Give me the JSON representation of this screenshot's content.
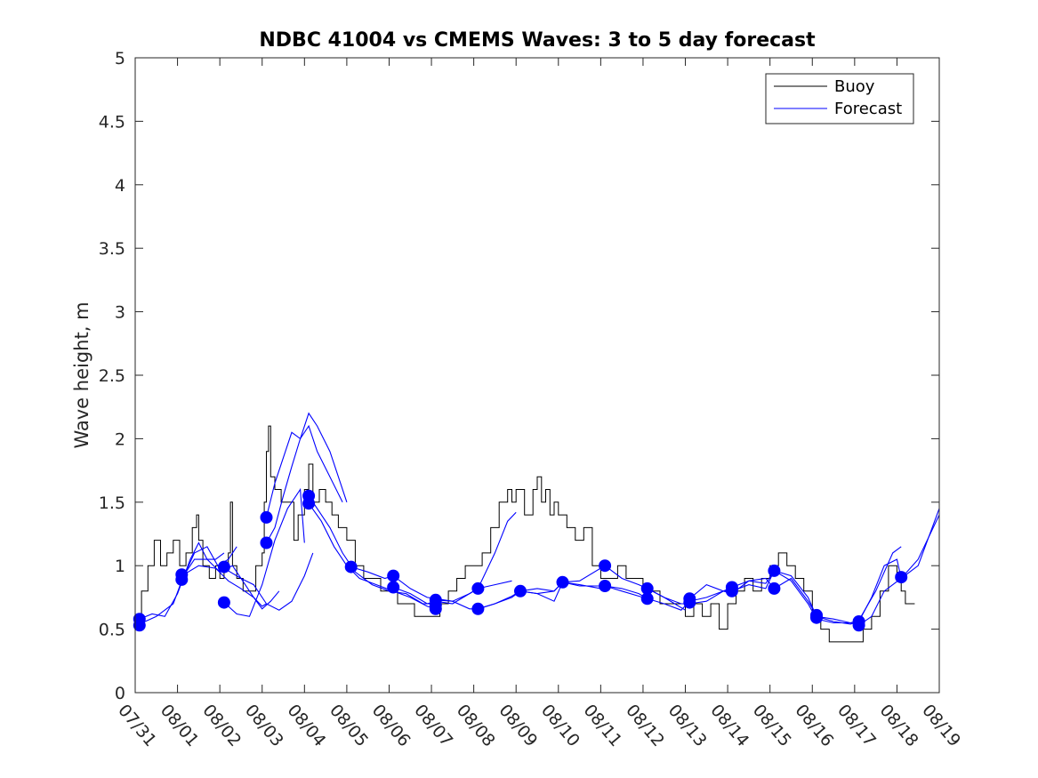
{
  "chart_data": {
    "type": "line",
    "title": "NDBC 41004 vs CMEMS Waves: 3 to 5 day forecast",
    "xlabel": "",
    "ylabel": "Wave height, m",
    "xlim": [
      0,
      19
    ],
    "ylim": [
      0,
      5
    ],
    "yticks": [
      "0",
      "0.5",
      "1",
      "1.5",
      "2",
      "2.5",
      "3",
      "3.5",
      "4",
      "4.5",
      "5"
    ],
    "xticks": [
      "07/31",
      "08/01",
      "08/02",
      "08/03",
      "08/04",
      "08/05",
      "08/06",
      "08/07",
      "08/08",
      "08/09",
      "08/10",
      "08/11",
      "08/12",
      "08/13",
      "08/14",
      "08/15",
      "08/16",
      "08/17",
      "08/18",
      "08/19"
    ],
    "legend": {
      "position": "top-right",
      "entries": [
        "Buoy",
        "Forecast"
      ]
    },
    "colors": {
      "buoy": "#000000",
      "forecast": "#0000ff"
    },
    "buoy": {
      "name": "Buoy",
      "x": [
        0.0,
        0.15,
        0.3,
        0.45,
        0.6,
        0.75,
        0.9,
        1.05,
        1.2,
        1.35,
        1.45,
        1.5,
        1.6,
        1.75,
        1.9,
        2.0,
        2.1,
        2.2,
        2.25,
        2.3,
        2.4,
        2.55,
        2.7,
        2.85,
        3.0,
        3.05,
        3.1,
        3.15,
        3.2,
        3.3,
        3.45,
        3.6,
        3.75,
        3.85,
        4.0,
        4.1,
        4.2,
        4.35,
        4.5,
        4.65,
        4.8,
        5.0,
        5.2,
        5.4,
        5.6,
        5.8,
        6.0,
        6.2,
        6.4,
        6.6,
        6.8,
        7.0,
        7.2,
        7.4,
        7.6,
        7.8,
        8.0,
        8.2,
        8.4,
        8.6,
        8.8,
        8.9,
        9.0,
        9.2,
        9.4,
        9.5,
        9.6,
        9.7,
        9.8,
        9.9,
        10.0,
        10.2,
        10.4,
        10.6,
        10.8,
        11.0,
        11.2,
        11.4,
        11.6,
        11.8,
        12.0,
        12.2,
        12.4,
        12.6,
        12.8,
        13.0,
        13.2,
        13.4,
        13.6,
        13.8,
        14.0,
        14.2,
        14.4,
        14.6,
        14.8,
        15.0,
        15.2,
        15.4,
        15.6,
        15.8,
        16.0,
        16.2,
        16.4,
        16.6,
        16.8,
        17.0,
        17.2,
        17.4,
        17.6,
        17.8,
        18.0,
        18.1,
        18.2,
        18.3
      ],
      "y": [
        0.5,
        0.8,
        1.0,
        1.2,
        1.0,
        1.1,
        1.2,
        1.0,
        1.1,
        1.3,
        1.4,
        1.2,
        1.0,
        0.9,
        1.0,
        0.9,
        1.0,
        1.1,
        1.5,
        1.0,
        0.9,
        0.8,
        0.8,
        1.0,
        1.1,
        1.5,
        1.9,
        2.1,
        1.7,
        1.6,
        1.5,
        1.5,
        1.2,
        1.4,
        1.6,
        1.8,
        1.5,
        1.6,
        1.5,
        1.4,
        1.3,
        1.2,
        1.0,
        0.9,
        0.9,
        0.8,
        0.8,
        0.7,
        0.7,
        0.6,
        0.6,
        0.6,
        0.7,
        0.8,
        0.9,
        1.0,
        1.0,
        1.1,
        1.3,
        1.5,
        1.6,
        1.5,
        1.6,
        1.4,
        1.6,
        1.7,
        1.5,
        1.6,
        1.4,
        1.5,
        1.4,
        1.3,
        1.2,
        1.3,
        1.0,
        0.9,
        0.9,
        1.0,
        0.9,
        0.9,
        0.8,
        0.8,
        0.7,
        0.7,
        0.7,
        0.6,
        0.7,
        0.6,
        0.7,
        0.5,
        0.7,
        0.8,
        0.9,
        0.8,
        0.9,
        1.0,
        1.1,
        1.0,
        0.9,
        0.8,
        0.6,
        0.5,
        0.4,
        0.4,
        0.4,
        0.4,
        0.5,
        0.6,
        0.8,
        1.0,
        0.9,
        0.8,
        0.7,
        0.7
      ]
    },
    "forecasts": [
      {
        "name": "Forecast",
        "x": [
          0.1,
          0.4,
          0.7,
          1.0,
          1.3,
          1.5,
          1.7,
          1.9,
          2.1
        ],
        "y": [
          0.58,
          0.62,
          0.6,
          0.78,
          1.05,
          1.18,
          1.05,
          1.05,
          1.1
        ]
      },
      {
        "name": "Forecast",
        "x": [
          0.1,
          0.5,
          0.9,
          1.1,
          1.4,
          1.7,
          1.95,
          2.2,
          2.4
        ],
        "y": [
          0.54,
          0.6,
          0.7,
          0.88,
          1.1,
          1.15,
          1.0,
          1.05,
          1.15
        ]
      },
      {
        "name": "Forecast",
        "x": [
          1.1,
          1.4,
          1.7,
          2.0,
          2.3,
          2.6,
          2.8,
          3.0,
          3.1
        ],
        "y": [
          0.9,
          1.05,
          1.05,
          0.95,
          1.0,
          0.85,
          0.75,
          0.68,
          0.7
        ]
      },
      {
        "name": "Forecast",
        "x": [
          1.1,
          1.5,
          1.9,
          2.2,
          2.5,
          2.8,
          3.0,
          3.2,
          3.4
        ],
        "y": [
          0.92,
          1.0,
          0.98,
          0.88,
          0.82,
          0.75,
          0.66,
          0.72,
          0.8
        ]
      },
      {
        "name": "Forecast",
        "x": [
          2.1,
          2.5,
          2.8,
          3.1,
          3.4,
          3.7,
          4.0,
          4.2
        ],
        "y": [
          0.98,
          0.9,
          0.85,
          0.7,
          0.65,
          0.72,
          0.92,
          1.1
        ]
      },
      {
        "name": "Forecast",
        "x": [
          2.1,
          2.4,
          2.7,
          3.0,
          3.3,
          3.6,
          3.9,
          4.0
        ],
        "y": [
          0.71,
          0.62,
          0.6,
          0.85,
          1.2,
          1.45,
          1.6,
          1.18
        ]
      },
      {
        "name": "Forecast",
        "x": [
          3.1,
          3.3,
          3.5,
          3.7,
          3.9,
          4.1,
          4.3,
          4.6,
          4.9
        ],
        "y": [
          1.38,
          1.65,
          1.85,
          2.05,
          2.0,
          2.1,
          1.9,
          1.7,
          1.5
        ]
      },
      {
        "name": "Forecast",
        "x": [
          3.1,
          3.3,
          3.5,
          3.7,
          3.9,
          4.1,
          4.3,
          4.6,
          4.8,
          5.0
        ],
        "y": [
          1.18,
          1.3,
          1.55,
          1.78,
          2.0,
          2.2,
          2.1,
          1.9,
          1.7,
          1.5
        ]
      },
      {
        "name": "Forecast",
        "x": [
          4.1,
          4.3,
          4.6,
          4.9,
          5.2,
          5.6,
          6.0,
          6.4,
          6.8,
          7.1
        ],
        "y": [
          1.55,
          1.45,
          1.3,
          1.1,
          0.95,
          0.85,
          0.8,
          0.78,
          0.7,
          0.7
        ]
      },
      {
        "name": "Forecast",
        "x": [
          4.1,
          4.4,
          4.7,
          5.0,
          5.3,
          5.7,
          6.1,
          6.5,
          6.9,
          7.1
        ],
        "y": [
          1.49,
          1.35,
          1.15,
          1.0,
          0.9,
          0.85,
          0.8,
          0.75,
          0.68,
          0.66
        ]
      },
      {
        "name": "Forecast",
        "x": [
          5.1,
          5.5,
          5.9,
          6.1,
          6.5,
          6.9,
          7.1,
          7.5,
          7.9,
          8.1,
          8.5,
          8.9
        ],
        "y": [
          0.99,
          0.95,
          0.9,
          0.92,
          0.82,
          0.75,
          0.74,
          0.72,
          0.78,
          0.82,
          0.85,
          0.88
        ]
      },
      {
        "name": "Forecast",
        "x": [
          6.1,
          6.5,
          6.9,
          7.1,
          7.5,
          7.9,
          8.1,
          8.5,
          8.8,
          9.0
        ],
        "y": [
          0.83,
          0.78,
          0.7,
          0.72,
          0.7,
          0.78,
          0.82,
          1.1,
          1.35,
          1.42
        ]
      },
      {
        "name": "Forecast",
        "x": [
          7.1,
          7.5,
          7.9,
          8.1,
          8.5,
          8.9,
          9.1,
          9.5,
          9.9,
          10.1,
          10.5,
          11.0
        ],
        "y": [
          0.73,
          0.72,
          0.66,
          0.66,
          0.7,
          0.76,
          0.8,
          0.82,
          0.8,
          0.87,
          0.85,
          0.82
        ]
      },
      {
        "name": "Forecast",
        "x": [
          8.1,
          8.5,
          8.9,
          9.1,
          9.5,
          9.9,
          10.1,
          10.5,
          11.1,
          11.5,
          12.0
        ],
        "y": [
          0.66,
          0.7,
          0.75,
          0.8,
          0.78,
          0.8,
          0.87,
          0.84,
          0.84,
          0.8,
          0.75
        ]
      },
      {
        "name": "Forecast",
        "x": [
          9.1,
          9.5,
          9.9,
          10.1,
          10.5,
          11.1,
          11.5,
          11.9,
          12.1,
          12.5,
          13.0
        ],
        "y": [
          0.8,
          0.78,
          0.72,
          0.87,
          0.88,
          1.0,
          0.9,
          0.85,
          0.82,
          0.75,
          0.65
        ]
      },
      {
        "name": "Forecast",
        "x": [
          11.1,
          11.5,
          11.9,
          12.1,
          12.5,
          12.9,
          13.1,
          13.5,
          13.9,
          14.1
        ],
        "y": [
          0.84,
          0.82,
          0.78,
          0.74,
          0.7,
          0.65,
          0.72,
          0.75,
          0.8,
          0.83
        ]
      },
      {
        "name": "Forecast",
        "x": [
          12.1,
          12.5,
          12.9,
          13.1,
          13.5,
          13.9,
          14.1,
          14.5,
          14.9,
          15.1
        ],
        "y": [
          0.82,
          0.75,
          0.7,
          0.7,
          0.72,
          0.8,
          0.8,
          0.85,
          0.82,
          0.96
        ]
      },
      {
        "name": "Forecast",
        "x": [
          13.1,
          13.5,
          13.9,
          14.1,
          14.5,
          14.9,
          15.1,
          15.5,
          15.9,
          16.1
        ],
        "y": [
          0.74,
          0.85,
          0.8,
          0.78,
          0.88,
          0.9,
          0.82,
          0.9,
          0.72,
          0.61
        ]
      },
      {
        "name": "Forecast",
        "x": [
          14.1,
          14.5,
          14.9,
          15.1,
          15.5,
          15.9,
          16.1,
          16.5,
          16.9,
          17.1
        ],
        "y": [
          0.83,
          0.88,
          0.86,
          0.96,
          0.92,
          0.75,
          0.6,
          0.58,
          0.55,
          0.53
        ]
      },
      {
        "name": "Forecast",
        "x": [
          15.1,
          15.5,
          15.9,
          16.1,
          16.5,
          16.9,
          17.1,
          17.5,
          17.9,
          18.1
        ],
        "y": [
          0.96,
          0.88,
          0.7,
          0.58,
          0.55,
          0.55,
          0.57,
          0.8,
          1.1,
          1.15
        ]
      },
      {
        "name": "Forecast",
        "x": [
          16.1,
          16.5,
          16.9,
          17.1,
          17.4,
          17.7,
          18.0,
          18.1,
          18.5,
          19.0
        ],
        "y": [
          0.6,
          0.56,
          0.54,
          0.56,
          0.75,
          1.0,
          1.05,
          0.9,
          1.0,
          1.45
        ]
      },
      {
        "name": "Forecast",
        "x": [
          17.1,
          17.4,
          17.7,
          18.1,
          18.5,
          19.0
        ],
        "y": [
          0.53,
          0.6,
          0.8,
          0.9,
          1.05,
          1.4
        ]
      }
    ],
    "forecast_markers": {
      "x": [
        0.1,
        0.1,
        1.1,
        1.1,
        2.1,
        2.1,
        3.1,
        3.1,
        4.1,
        4.1,
        5.1,
        6.1,
        6.1,
        7.1,
        7.1,
        7.1,
        8.1,
        8.1,
        9.1,
        10.1,
        11.1,
        11.1,
        12.1,
        12.1,
        13.1,
        13.1,
        14.1,
        14.1,
        15.1,
        15.1,
        16.1,
        16.1,
        17.1,
        17.1,
        18.1
      ],
      "y": [
        0.58,
        0.53,
        0.93,
        0.89,
        0.99,
        0.71,
        1.38,
        1.18,
        1.55,
        1.49,
        0.99,
        0.92,
        0.83,
        0.73,
        0.69,
        0.66,
        0.82,
        0.66,
        0.8,
        0.87,
        1.0,
        0.84,
        0.82,
        0.74,
        0.74,
        0.71,
        0.83,
        0.8,
        0.96,
        0.82,
        0.61,
        0.59,
        0.56,
        0.53,
        0.91
      ]
    }
  }
}
